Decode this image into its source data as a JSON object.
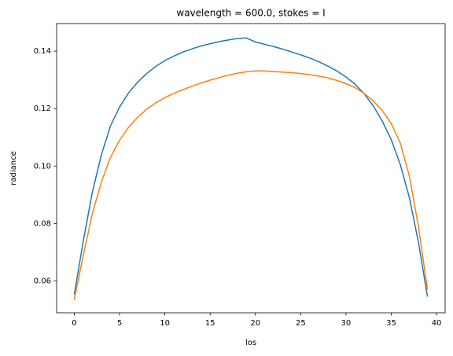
{
  "chart_data": {
    "type": "line",
    "title": "wavelength = 600.0, stokes = I",
    "xlabel": "los",
    "ylabel": "radiance",
    "x": [
      0,
      1,
      2,
      3,
      4,
      5,
      6,
      7,
      8,
      9,
      10,
      11,
      12,
      13,
      14,
      15,
      16,
      17,
      18,
      19,
      20,
      21,
      22,
      23,
      24,
      25,
      26,
      27,
      28,
      29,
      30,
      31,
      32,
      33,
      34,
      35,
      36,
      37,
      38,
      39
    ],
    "series": [
      {
        "color": "#1f77b4",
        "values": [
          0.0553,
          0.074,
          0.091,
          0.104,
          0.114,
          0.1205,
          0.1255,
          0.1292,
          0.1322,
          0.1347,
          0.1367,
          0.1383,
          0.1397,
          0.1408,
          0.1418,
          0.1426,
          0.1433,
          0.1439,
          0.1444,
          0.1446,
          0.1432,
          0.1424,
          0.1416,
          0.1407,
          0.1397,
          0.1387,
          0.1376,
          0.1363,
          0.1348,
          0.1331,
          0.131,
          0.1285,
          0.1252,
          0.121,
          0.1157,
          0.1092,
          0.1005,
          0.089,
          0.0735,
          0.0545
        ]
      },
      {
        "color": "#ff7f0e",
        "values": [
          0.0535,
          0.069,
          0.0835,
          0.0945,
          0.103,
          0.109,
          0.1135,
          0.117,
          0.1198,
          0.122,
          0.1238,
          0.1253,
          0.1266,
          0.1278,
          0.1289,
          0.1299,
          0.1308,
          0.1316,
          0.1323,
          0.1328,
          0.1331,
          0.1331,
          0.1329,
          0.1327,
          0.1325,
          0.1322,
          0.1318,
          0.1313,
          0.1307,
          0.1298,
          0.1287,
          0.1273,
          0.1253,
          0.1227,
          0.1193,
          0.1148,
          0.108,
          0.0965,
          0.079,
          0.057
        ]
      }
    ],
    "xlim": [
      -1.95,
      40.95
    ],
    "xticks": [
      0,
      5,
      10,
      15,
      20,
      25,
      30,
      35,
      40
    ],
    "ylim": [
      0.0489,
      0.1496
    ],
    "yticks": [
      0.06,
      0.08,
      {
        "value": 0.1,
        "label": "0.10"
      },
      0.12,
      0.14
    ]
  }
}
